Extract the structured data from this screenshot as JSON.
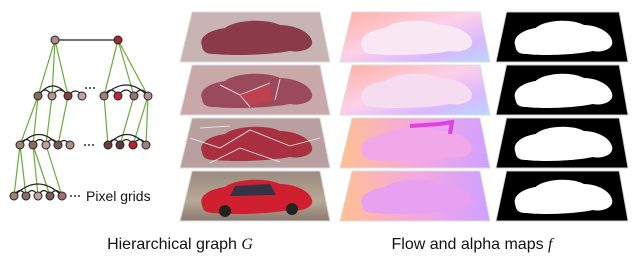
{
  "diagram": {
    "pixel_grids_label": "Pixel grids",
    "captions": [
      {
        "text": "Hierarchical graph",
        "symbol": "G"
      },
      {
        "text": "Flow and alpha maps",
        "symbol": "f"
      }
    ]
  }
}
